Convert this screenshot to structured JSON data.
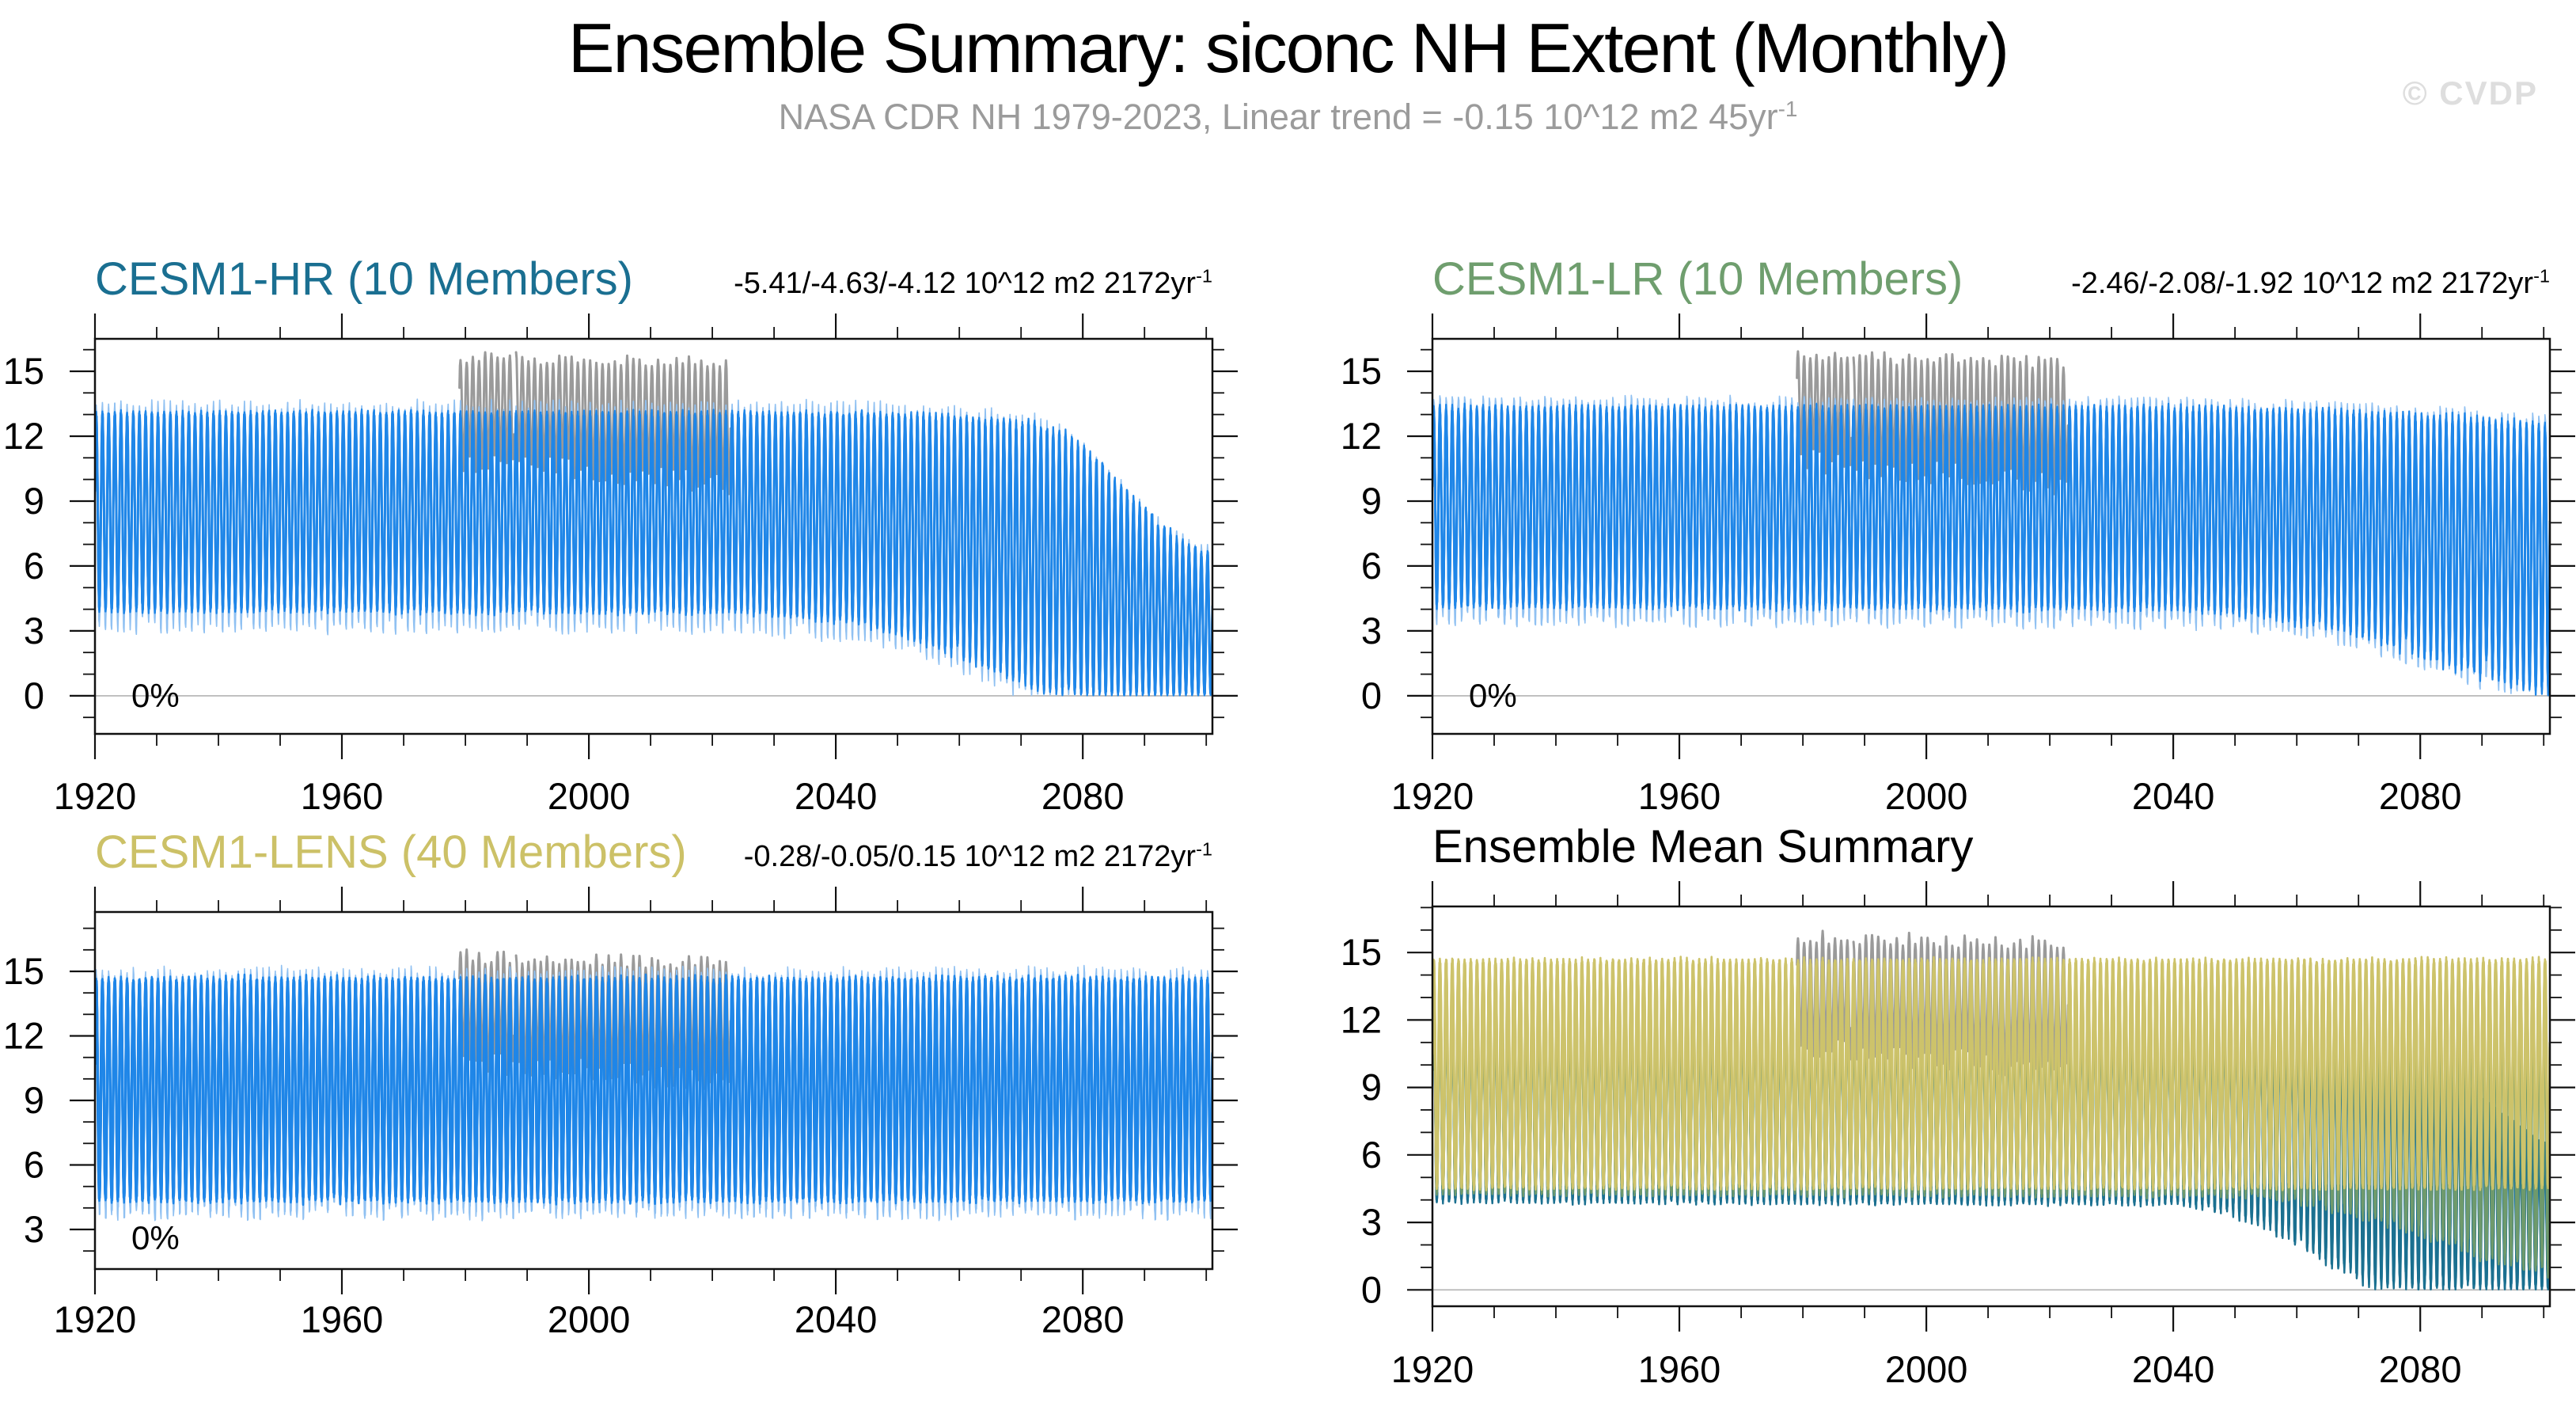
{
  "header": {
    "title": "Ensemble Summary: siconc NH Extent (Monthly)",
    "subtitle": "NASA CDR NH 1979-2023, Linear trend = -0.15 10^12 m2 45yr",
    "subtitle_sup": "-1",
    "watermark": "© CVDP"
  },
  "colors": {
    "ensemble_blue": "#1f86e8",
    "ensemble_blue_light": "#90c1f2",
    "obs_gray": "#9a9a9a",
    "hr_teal": "#1b7090",
    "lr_green": "#6f9a6c",
    "lens_olive": "#cdc36b",
    "zero_line": "#b3b3b3",
    "axis_black": "#111111"
  },
  "chart_data": [
    {
      "id": "cesm1-hr",
      "type": "line-ensemble",
      "title": "CESM1-HR (10 Members)",
      "title_color": "#1a6f91",
      "trend": "-5.41/-4.63/-4.12 10^12 m2 2172yr",
      "trend_sup": "-1",
      "zero_label": "0%",
      "x_range": [
        1920,
        2101
      ],
      "y_range": [
        -1.76,
        16.5
      ],
      "x_major_ticks": [
        1920,
        1960,
        2000,
        2040,
        2080
      ],
      "x_minor_step": 10,
      "y_major_ticks": [
        0,
        3,
        6,
        9,
        12,
        15
      ],
      "y_minor_step": 1,
      "zero_line": 0,
      "series": [
        {
          "name": "nasa-cdr-obs",
          "color_key": "obs_gray",
          "members": 1,
          "stroke": 3,
          "x_start": 1979,
          "x_end": 2023,
          "gap_years": [
            1988.05
          ],
          "keyframes": {
            "years": [
              1979,
              2000,
              2023
            ],
            "max": [
              15.7,
              15.55,
              15.4
            ],
            "min": [
              10.9,
              10.4,
              9.8
            ]
          },
          "max_noise": [
            0.3
          ],
          "min_noise": [
            0.55
          ]
        },
        {
          "name": "cesm1-hr-member-extremes",
          "color_key": "ensemble_blue_light",
          "members": 3,
          "stroke": 1.7,
          "x_start": 1920,
          "x_end": 2101,
          "off_jitter": 0.22,
          "phase_jitter": 0.5,
          "expand_top": 0.3,
          "expand_bottom": 0.55,
          "clamp_zero": true,
          "keyframes": {
            "years": [
              1920,
              2025,
              2045,
              2055,
              2065,
              2072,
              2078,
              2084,
              2090,
              2096,
              2100
            ],
            "max": [
              13.05,
              13.05,
              13.0,
              12.9,
              12.7,
              12.45,
              11.9,
              10.2,
              8.4,
              7.0,
              6.5
            ],
            "min": [
              4.0,
              3.95,
              3.5,
              2.7,
              1.5,
              0.6,
              0.15,
              0.05,
              0.03,
              0.02,
              0.02
            ]
          },
          "max_noise": [
            0.25
          ],
          "min_noise": [
            0.5
          ]
        },
        {
          "name": "cesm1-hr-members",
          "color_key": "ensemble_blue",
          "members": 10,
          "stroke": 2.3,
          "x_start": 1920,
          "x_end": 2101,
          "amp_jitter": 0.02,
          "off_jitter": 0.1,
          "phase_jitter": 0.6,
          "clamp_zero": true,
          "keyframes": {
            "years": [
              1920,
              2025,
              2045,
              2055,
              2065,
              2072,
              2078,
              2084,
              2090,
              2096,
              2100
            ],
            "max": [
              13.05,
              13.05,
              13.0,
              12.9,
              12.7,
              12.45,
              11.9,
              10.2,
              8.4,
              7.0,
              6.5
            ],
            "min": [
              4.0,
              3.95,
              3.5,
              2.7,
              1.5,
              0.6,
              0.15,
              0.05,
              0.03,
              0.02,
              0.02
            ]
          },
          "max_noise": [
            0.1,
            0.1,
            0.12,
            0.15,
            0.2,
            0.3,
            0.42,
            0.5,
            0.45,
            0.35,
            0.3
          ],
          "min_noise": [
            0.12,
            0.15,
            0.3,
            0.45,
            0.5,
            0.45,
            0.3,
            0.12,
            0.08,
            0.06,
            0.06
          ]
        }
      ]
    },
    {
      "id": "cesm1-lr",
      "type": "line-ensemble",
      "title": "CESM1-LR (10 Members)",
      "title_color": "#6f9e6e",
      "trend": "-2.46/-2.08/-1.92 10^12 m2 2172yr",
      "trend_sup": "-1",
      "zero_label": "0%",
      "x_range": [
        1920,
        2101
      ],
      "y_range": [
        -1.76,
        16.5
      ],
      "x_major_ticks": [
        1920,
        1960,
        2000,
        2040,
        2080
      ],
      "x_minor_step": 10,
      "y_major_ticks": [
        0,
        3,
        6,
        9,
        12,
        15
      ],
      "y_minor_step": 1,
      "zero_line": 0,
      "series": [
        {
          "name": "nasa-cdr-obs",
          "color_key": "obs_gray",
          "members": 1,
          "stroke": 3,
          "x_start": 1979,
          "x_end": 2023,
          "gap_years": [
            1988.05
          ],
          "keyframes": {
            "years": [
              1979,
              2000,
              2023
            ],
            "max": [
              15.7,
              15.55,
              15.4
            ],
            "min": [
              10.9,
              10.4,
              9.8
            ]
          },
          "max_noise": [
            0.3
          ],
          "min_noise": [
            0.55
          ]
        },
        {
          "name": "cesm1-lr-member-extremes",
          "color_key": "ensemble_blue_light",
          "members": 3,
          "stroke": 1.7,
          "x_start": 1920,
          "x_end": 2101,
          "off_jitter": 0.22,
          "phase_jitter": 0.5,
          "expand_top": 0.3,
          "expand_bottom": 0.5,
          "clamp_zero": true,
          "keyframes": {
            "years": [
              1920,
              2040,
              2055,
              2068,
              2078,
              2088,
              2096,
              2100
            ],
            "max": [
              13.3,
              13.3,
              13.2,
              13.1,
              12.95,
              12.75,
              12.55,
              12.45
            ],
            "min": [
              4.2,
              4.1,
              3.8,
              3.25,
              2.45,
              1.5,
              0.7,
              0.5
            ]
          },
          "max_noise": [
            0.25
          ],
          "min_noise": [
            0.5
          ]
        },
        {
          "name": "cesm1-lr-members",
          "color_key": "ensemble_blue",
          "members": 10,
          "stroke": 2.3,
          "x_start": 1920,
          "x_end": 2101,
          "amp_jitter": 0.02,
          "off_jitter": 0.1,
          "phase_jitter": 0.6,
          "clamp_zero": true,
          "keyframes": {
            "years": [
              1920,
              2040,
              2055,
              2068,
              2078,
              2088,
              2096,
              2100
            ],
            "max": [
              13.3,
              13.3,
              13.2,
              13.1,
              12.95,
              12.75,
              12.55,
              12.45
            ],
            "min": [
              4.2,
              4.1,
              3.8,
              3.25,
              2.45,
              1.5,
              0.7,
              0.5
            ]
          },
          "max_noise": [
            0.1,
            0.1,
            0.12,
            0.14,
            0.16,
            0.18,
            0.2,
            0.2
          ],
          "min_noise": [
            0.12,
            0.15,
            0.3,
            0.45,
            0.55,
            0.6,
            0.5,
            0.45
          ]
        }
      ]
    },
    {
      "id": "cesm1-lens",
      "type": "line-ensemble",
      "title": "CESM1-LENS (40 Members)",
      "title_color": "#ccc167",
      "trend": "-0.28/-0.05/0.15 10^12 m2 2172yr",
      "trend_sup": "-1",
      "zero_label": "0%",
      "x_range": [
        1920,
        2101
      ],
      "y_range": [
        1.16,
        17.76
      ],
      "x_major_ticks": [
        1920,
        1960,
        2000,
        2040,
        2080
      ],
      "x_minor_step": 10,
      "y_major_ticks": [
        3,
        6,
        9,
        12,
        15
      ],
      "y_minor_step": 1,
      "zero_line": 0,
      "series": [
        {
          "name": "nasa-cdr-obs",
          "color_key": "obs_gray",
          "members": 1,
          "stroke": 3,
          "x_start": 1979,
          "x_end": 2023,
          "gap_years": [
            1988.05
          ],
          "keyframes": {
            "years": [
              1979,
              2000,
              2023
            ],
            "max": [
              15.7,
              15.55,
              15.4
            ],
            "min": [
              10.9,
              10.4,
              9.8
            ]
          },
          "max_noise": [
            0.3
          ],
          "min_noise": [
            0.55
          ]
        },
        {
          "name": "cesm1-lens-member-extremes",
          "color_key": "ensemble_blue_light",
          "members": 3,
          "stroke": 1.6,
          "x_start": 1920,
          "x_end": 2101,
          "off_jitter": 0.2,
          "phase_jitter": 0.5,
          "expand_top": 0.3,
          "expand_bottom": 0.6,
          "clamp_zero": true,
          "keyframes": {
            "years": [
              1920,
              2100
            ],
            "max": [
              14.6,
              14.6
            ],
            "min": [
              4.45,
              4.45
            ]
          },
          "max_noise": [
            0.3
          ],
          "min_noise": [
            0.45
          ]
        },
        {
          "name": "cesm1-lens-members",
          "color_key": "ensemble_blue",
          "members": 14,
          "stroke": 2.6,
          "x_start": 1920,
          "x_end": 2101,
          "amp_jitter": 0.015,
          "off_jitter": 0.08,
          "phase_jitter": 0.7,
          "clamp_zero": true,
          "keyframes": {
            "years": [
              1920,
              2100
            ],
            "max": [
              14.6,
              14.6
            ],
            "min": [
              4.45,
              4.45
            ]
          },
          "max_noise": [
            0.12
          ],
          "min_noise": [
            0.18
          ]
        }
      ]
    },
    {
      "id": "ensemble-mean",
      "type": "line-ensemble",
      "title": "Ensemble Mean Summary",
      "title_color": "#000000",
      "trend": "",
      "trend_sup": "",
      "zero_label": null,
      "x_range": [
        1920,
        2101
      ],
      "y_range": [
        -0.73,
        17.05
      ],
      "x_major_ticks": [
        1920,
        1960,
        2000,
        2040,
        2080
      ],
      "x_minor_step": 10,
      "y_major_ticks": [
        0,
        3,
        6,
        9,
        12,
        15
      ],
      "y_minor_step": 1,
      "zero_line": 0,
      "series": [
        {
          "name": "nasa-cdr-obs",
          "color_key": "obs_gray",
          "members": 1,
          "stroke": 3,
          "x_start": 1979,
          "x_end": 2023,
          "gap_years": [
            1988.05
          ],
          "keyframes": {
            "years": [
              1979,
              2000,
              2023
            ],
            "max": [
              15.7,
              15.55,
              15.4
            ],
            "min": [
              10.9,
              10.4,
              9.8
            ]
          },
          "max_noise": [
            0.3
          ],
          "min_noise": [
            0.55
          ]
        },
        {
          "name": "cesm1-hr-ensemble-mean",
          "color_key": "hr_teal",
          "members": 7,
          "stroke": 2.4,
          "x_start": 1920,
          "x_end": 2101,
          "off_jitter": 0.05,
          "phase_jitter": 0.6,
          "clamp_zero": true,
          "keyframes": {
            "years": [
              1920,
              2040,
              2050,
              2058,
              2065,
              2071,
              2076,
              2082,
              2100
            ],
            "max": [
              13.0,
              12.95,
              12.8,
              12.5,
              12.1,
              11.6,
              11.0,
              10.2,
              6.5
            ],
            "min": [
              3.92,
              3.85,
              3.45,
              2.6,
              1.5,
              0.7,
              0.25,
              0.08,
              0.05
            ]
          },
          "max_noise": [
            0.06
          ],
          "min_noise": [
            0.06,
            0.1,
            0.28,
            0.45,
            0.55,
            0.6,
            0.55,
            0.5,
            0.55
          ]
        },
        {
          "name": "cesm1-lr-ensemble-mean",
          "color_key": "lr_green",
          "members": 7,
          "stroke": 2.4,
          "x_start": 1920,
          "x_end": 2101,
          "off_jitter": 0.05,
          "phase_jitter": 0.6,
          "clamp_zero": true,
          "keyframes": {
            "years": [
              1920,
              2052,
              2062,
              2072,
              2080,
              2090,
              2100
            ],
            "max": [
              13.35,
              13.3,
              13.15,
              12.95,
              12.8,
              12.6,
              12.45
            ],
            "min": [
              4.27,
              4.2,
              3.9,
              3.3,
              2.7,
              1.7,
              1.0
            ]
          },
          "max_noise": [
            0.06
          ],
          "min_noise": [
            0.06,
            0.1,
            0.25,
            0.35,
            0.45,
            0.5,
            0.5
          ]
        },
        {
          "name": "cesm1-lens-ensemble-mean",
          "color_key": "lens_olive",
          "members": 12,
          "stroke": 2.6,
          "x_start": 1920,
          "x_end": 2101,
          "off_jitter": 0.05,
          "phase_jitter": 0.7,
          "clamp_zero": true,
          "keyframes": {
            "years": [
              1920,
              2100
            ],
            "max": [
              14.65,
              14.65
            ],
            "min": [
              4.56,
              4.56
            ]
          },
          "max_noise": [
            0.08
          ],
          "min_noise": [
            0.1
          ]
        }
      ]
    }
  ]
}
